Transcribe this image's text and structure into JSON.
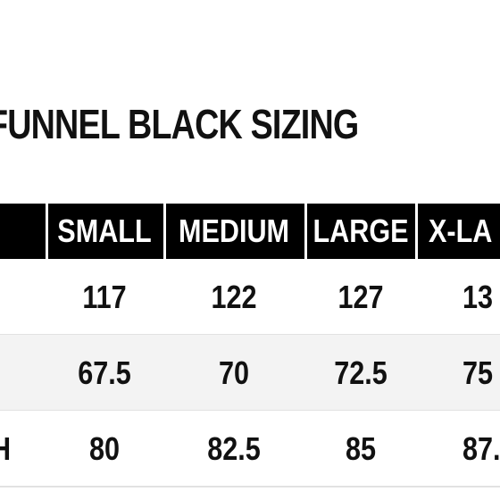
{
  "header": {
    "title": "FUNNEL BLACK SIZING"
  },
  "table": {
    "columns": [
      "SMALL",
      "MEDIUM",
      "LARGE",
      "X-LA"
    ],
    "rows": [
      {
        "cells": [
          "117",
          "122",
          "127",
          "13"
        ]
      },
      {
        "cells": [
          "67.5",
          "70",
          "72.5",
          "75"
        ]
      },
      {
        "label": "H",
        "cells": [
          "80",
          "82.5",
          "85",
          "87."
        ]
      }
    ]
  }
}
